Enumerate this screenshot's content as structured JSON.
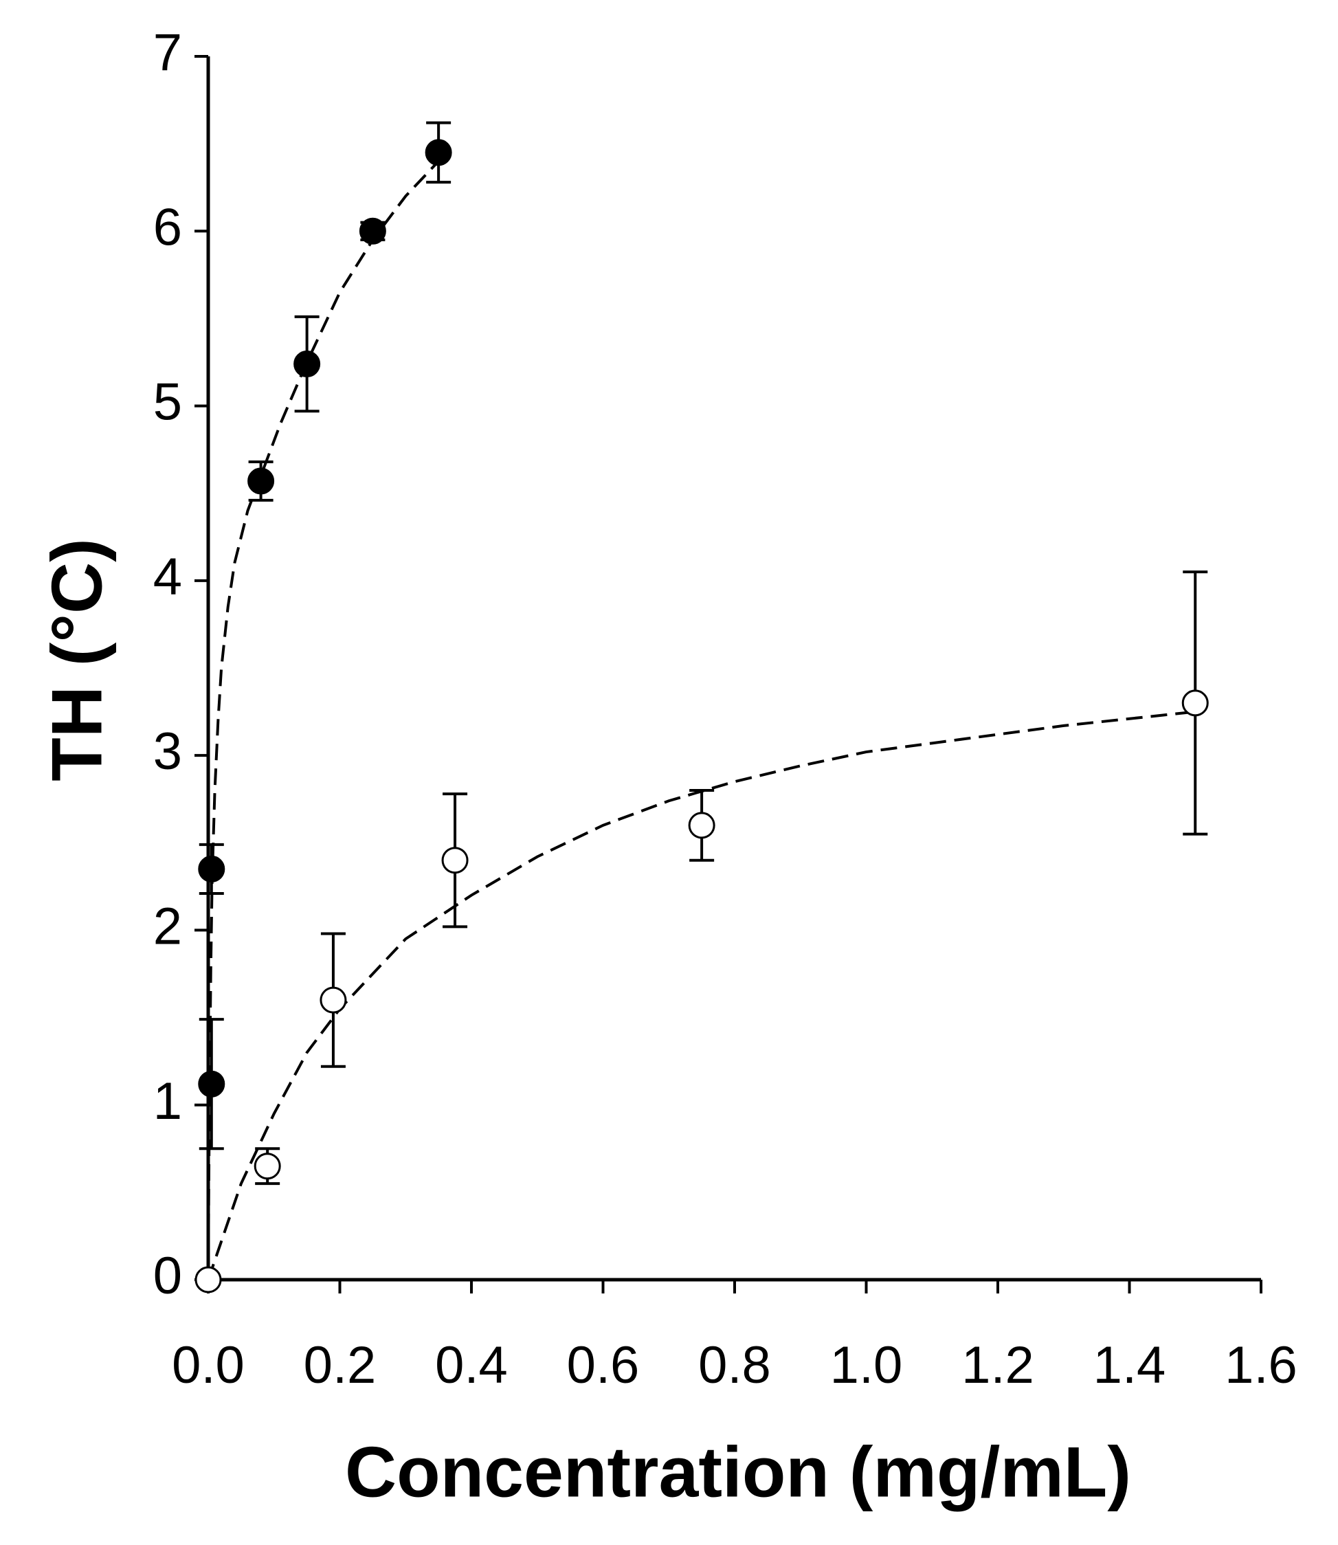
{
  "chart_data": {
    "type": "scatter",
    "x_label": "Concentration (mg/mL)",
    "y_label": "TH (°C)",
    "xlim": [
      0,
      1.6
    ],
    "ylim": [
      0,
      7
    ],
    "xticks": [
      {
        "value": 0,
        "label": "0.0"
      },
      0.2,
      0.4,
      0.6,
      0.8,
      {
        "value": 1,
        "label": "1.0"
      },
      1.2,
      1.4,
      1.6
    ],
    "yticks": [
      0,
      1,
      2,
      3,
      4,
      5,
      6,
      7
    ],
    "series": [
      {
        "color": "#000000",
        "fill": "#000000",
        "x": [
          0.005,
          0.005,
          0.08,
          0.15,
          0.25,
          0.35
        ],
        "values": [
          1.12,
          2.35,
          4.57,
          5.24,
          6.0,
          6.45
        ],
        "errors": [
          0.37,
          0.14,
          0.11,
          0.27,
          0.05,
          0.17
        ],
        "fit_x": [
          0,
          0.001,
          0.002,
          0.004,
          0.006,
          0.01,
          0.015,
          0.02,
          0.03,
          0.04,
          0.06,
          0.08,
          0.11,
          0.15,
          0.2,
          0.25,
          0.3,
          0.35
        ],
        "fit_y": [
          0,
          0.6,
          1.1,
          1.8,
          2.3,
          2.8,
          3.2,
          3.5,
          3.85,
          4.1,
          4.4,
          4.6,
          4.9,
          5.25,
          5.65,
          5.95,
          6.2,
          6.4
        ]
      },
      {
        "color": "#000000",
        "fill": "#ffffff",
        "x": [
          0,
          0.09,
          0.19,
          0.375,
          0.75,
          1.5
        ],
        "values": [
          0,
          0.65,
          1.6,
          2.4,
          2.6,
          3.3
        ],
        "errors": [
          0,
          0.1,
          0.38,
          0.38,
          0.2,
          0.75
        ],
        "fit_x": [
          0,
          0.05,
          0.1,
          0.15,
          0.2,
          0.3,
          0.4,
          0.5,
          0.6,
          0.7,
          0.8,
          0.9,
          1.0,
          1.1,
          1.2,
          1.3,
          1.4,
          1.5
        ],
        "fit_y": [
          0,
          0.55,
          0.95,
          1.3,
          1.55,
          1.95,
          2.2,
          2.42,
          2.6,
          2.74,
          2.85,
          2.94,
          3.02,
          3.07,
          3.12,
          3.17,
          3.21,
          3.25
        ]
      }
    ]
  }
}
